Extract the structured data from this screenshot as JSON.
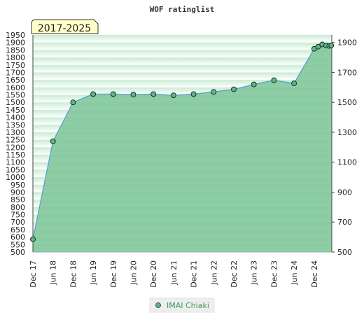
{
  "chart_data": {
    "type": "area",
    "title": "WOF ratinglist",
    "badge": "2017-2025",
    "ylim": [
      500,
      1950
    ],
    "left_ticks": [
      "500",
      "550",
      "600",
      "650",
      "700",
      "750",
      "800",
      "850",
      "900",
      "950",
      "1000",
      "1050",
      "1100",
      "1150",
      "1200",
      "1250",
      "1300",
      "1350",
      "1400",
      "1450",
      "1500",
      "1550",
      "1600",
      "1650",
      "1700",
      "1750",
      "1800",
      "1850",
      "1900",
      "1950"
    ],
    "right_ticks": [
      "500",
      "700",
      "900",
      "1100",
      "1300",
      "1500",
      "1700",
      "1900"
    ],
    "x_ticks": [
      "Dec 17",
      "Jun 18",
      "Dec 18",
      "Jun 19",
      "Dec 19",
      "Jun 20",
      "Dec 20",
      "Jun 21",
      "Dec 21",
      "Jun 22",
      "Dec 22",
      "Jun 23",
      "Dec 23",
      "Jun 24",
      "Dec 24"
    ],
    "grid": true,
    "legend_position": "bottom-center",
    "colors": {
      "fill": "#7fc69a",
      "line": "#5aa0d0",
      "marker": "#5cb87a"
    },
    "series": [
      {
        "name": "IMAI Chiaki",
        "points": [
          {
            "x": 0,
            "y": 585
          },
          {
            "x": 1,
            "y": 1240
          },
          {
            "x": 2,
            "y": 1500
          },
          {
            "x": 3,
            "y": 1555
          },
          {
            "x": 4,
            "y": 1555
          },
          {
            "x": 5,
            "y": 1552
          },
          {
            "x": 6,
            "y": 1555
          },
          {
            "x": 7,
            "y": 1547
          },
          {
            "x": 8,
            "y": 1555
          },
          {
            "x": 9,
            "y": 1570
          },
          {
            "x": 10,
            "y": 1587
          },
          {
            "x": 11,
            "y": 1620
          },
          {
            "x": 12,
            "y": 1648
          },
          {
            "x": 13,
            "y": 1627
          },
          {
            "x": 14,
            "y": 1858
          },
          {
            "x": 14.2,
            "y": 1872
          },
          {
            "x": 14.4,
            "y": 1887
          },
          {
            "x": 14.6,
            "y": 1880
          },
          {
            "x": 14.75,
            "y": 1877
          },
          {
            "x": 14.85,
            "y": 1880
          }
        ]
      }
    ]
  }
}
